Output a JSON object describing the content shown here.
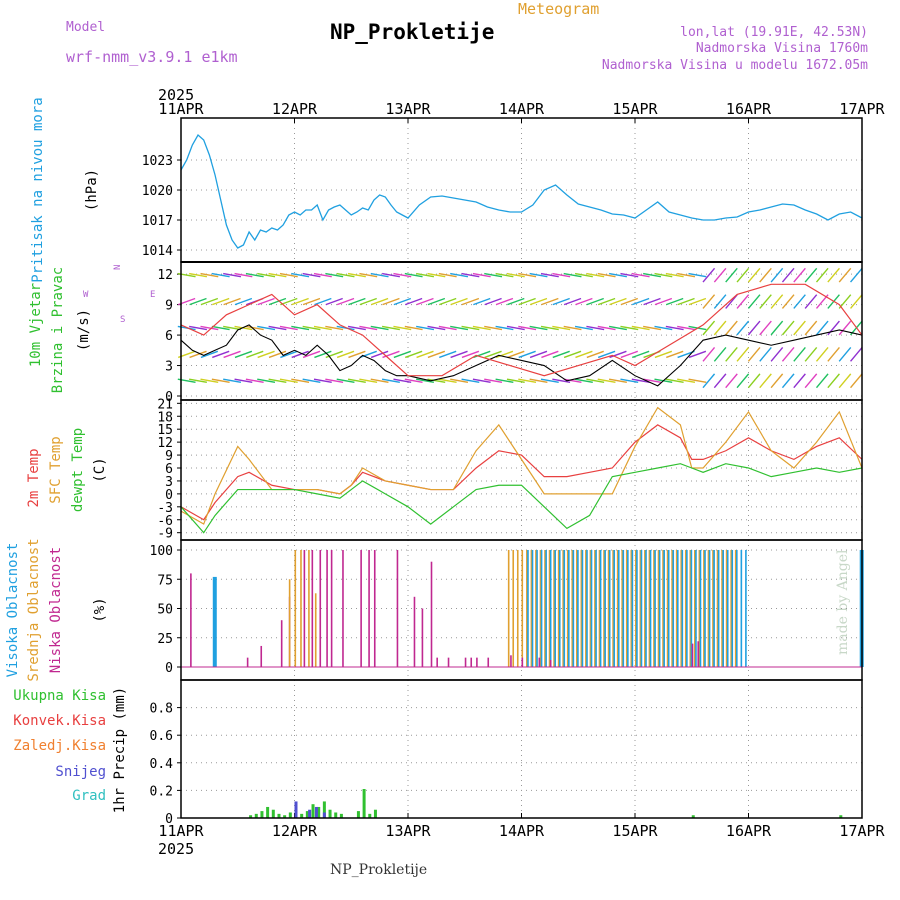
{
  "header": {
    "model_label": "Model",
    "model_name": "wrf-nmm_v3.9.1 e1km",
    "title": "NP_Prokletije",
    "subtitle": "Meteogram",
    "info_lines": [
      "lon,lat (19.91E, 42.53N)",
      "Nadmorska Visina 1760m",
      "Nadmorska Visina u modelu 1672.05m"
    ],
    "watermark": "made by Angel",
    "bottom_label": "NP_Prokletije"
  },
  "colors": {
    "pressure": "#20a0e0",
    "temp2m": "#e84040",
    "sfc_temp": "#e0a030",
    "dewpt": "#30c030",
    "cloud_high": "#20a0e0",
    "cloud_mid": "#e0a030",
    "cloud_low": "#c02890",
    "precip_total": "#30c030",
    "precip_conv": "#e84040",
    "precip_snow": "#5050d0",
    "precip_frozen": "#f08030",
    "precip_grad": "#30c0c0",
    "wind_speed": "#000000",
    "wind_gust": "#e84040"
  },
  "chart_data": [
    {
      "type": "line",
      "id": "pressure",
      "year_label": "2025",
      "date_labels": [
        "11APR",
        "12APR",
        "13APR",
        "14APR",
        "15APR",
        "16APR",
        "17APR"
      ],
      "ylabel_name": "Pritisak na nivou mora",
      "ylabel_unit": "(hPa)",
      "ylim": [
        1013.5,
        1026.5
      ],
      "yticks": [
        1014,
        1017,
        1020,
        1023
      ],
      "series": [
        {
          "x": [
            0,
            0.05,
            0.1,
            0.15,
            0.2,
            0.25,
            0.3,
            0.35,
            0.4,
            0.45,
            0.5,
            0.55,
            0.6,
            0.65,
            0.7,
            0.75,
            0.8,
            0.85,
            0.9,
            0.95,
            1.0,
            1.05,
            1.1,
            1.15,
            1.2,
            1.25,
            1.3,
            1.35,
            1.4,
            1.45,
            1.5,
            1.55,
            1.6,
            1.65,
            1.7,
            1.75,
            1.8,
            1.85,
            1.9,
            1.95,
            2.0,
            2.1,
            2.2,
            2.3,
            2.4,
            2.5,
            2.6,
            2.7,
            2.8,
            2.9,
            3.0,
            3.1,
            3.2,
            3.3,
            3.4,
            3.5,
            3.6,
            3.7,
            3.8,
            3.9,
            4.0,
            4.1,
            4.2,
            4.3,
            4.4,
            4.5,
            4.6,
            4.7,
            4.8,
            4.9,
            5.0,
            5.1,
            5.2,
            5.3,
            5.4,
            5.5,
            5.6,
            5.7,
            5.8,
            5.9,
            6.0
          ],
          "y": [
            1022.0,
            1023.0,
            1024.5,
            1025.5,
            1025.0,
            1023.5,
            1021.5,
            1019.0,
            1016.5,
            1015.0,
            1014.2,
            1014.5,
            1015.8,
            1015.0,
            1016.0,
            1015.8,
            1016.2,
            1016.0,
            1016.5,
            1017.5,
            1017.8,
            1017.5,
            1018.0,
            1018.0,
            1018.5,
            1017.0,
            1018.0,
            1018.3,
            1018.5,
            1018.0,
            1017.5,
            1017.8,
            1018.2,
            1018.0,
            1019.0,
            1019.5,
            1019.3,
            1018.5,
            1017.8,
            1017.5,
            1017.2,
            1018.5,
            1019.3,
            1019.4,
            1019.2,
            1019.0,
            1018.8,
            1018.3,
            1018.0,
            1017.8,
            1017.8,
            1018.5,
            1020.0,
            1020.5,
            1019.5,
            1018.6,
            1018.3,
            1018.0,
            1017.6,
            1017.5,
            1017.2,
            1018.0,
            1018.8,
            1017.8,
            1017.5,
            1017.2,
            1017.0,
            1017.0,
            1017.2,
            1017.3,
            1017.8,
            1018.0,
            1018.3,
            1018.6,
            1018.5,
            1018.0,
            1017.6,
            1017.0,
            1017.6,
            1017.8,
            1017.2
          ]
        }
      ]
    },
    {
      "type": "line",
      "id": "wind",
      "ylabel_name": "10m Vjetar",
      "ylabel_name2": "Brzina i Pravac",
      "ylabel_unit": "(m/s)",
      "compass": [
        "N",
        "E",
        "S",
        "W"
      ],
      "ylim": [
        0,
        13
      ],
      "yticks": [
        0,
        3,
        6,
        9,
        12
      ],
      "series": [
        {
          "name": "speed",
          "x": [
            0,
            0.1,
            0.2,
            0.3,
            0.4,
            0.5,
            0.6,
            0.7,
            0.8,
            0.9,
            1.0,
            1.1,
            1.2,
            1.3,
            1.4,
            1.5,
            1.6,
            1.7,
            1.8,
            1.9,
            2.0,
            2.2,
            2.4,
            2.6,
            2.8,
            3.0,
            3.2,
            3.4,
            3.6,
            3.8,
            4.0,
            4.2,
            4.4,
            4.6,
            4.8,
            5.0,
            5.2,
            5.4,
            5.6,
            5.8,
            6.0
          ],
          "y": [
            5.5,
            4.5,
            4.0,
            4.5,
            5.0,
            6.5,
            7.0,
            6.0,
            5.5,
            4.0,
            4.5,
            4.0,
            5.0,
            4.0,
            2.5,
            3.0,
            4.0,
            3.5,
            2.5,
            2.0,
            2.0,
            1.5,
            2.0,
            3.0,
            4.0,
            3.5,
            3.0,
            1.5,
            2.0,
            3.5,
            2.0,
            1.0,
            3.0,
            5.5,
            6.0,
            5.5,
            5.0,
            5.5,
            6.0,
            6.5,
            6.0
          ]
        },
        {
          "name": "gust",
          "x": [
            0,
            0.2,
            0.4,
            0.6,
            0.8,
            1.0,
            1.2,
            1.4,
            1.6,
            1.8,
            2.0,
            2.3,
            2.6,
            2.9,
            3.2,
            3.5,
            3.8,
            4.0,
            4.3,
            4.6,
            4.9,
            5.2,
            5.5,
            5.8,
            6.0
          ],
          "y": [
            7,
            6,
            8,
            9,
            10,
            8,
            9,
            7,
            6,
            4,
            2,
            2,
            4,
            3,
            2,
            3,
            4,
            3,
            5,
            7,
            10,
            11,
            11,
            9,
            6
          ]
        }
      ]
    },
    {
      "type": "line",
      "id": "temperature",
      "ylabel_names": [
        "2m Temp",
        "SFC Temp",
        "dewpt Temp"
      ],
      "ylabel_unit": "(C)",
      "ylim": [
        -10,
        22
      ],
      "yticks": [
        -9,
        -6,
        -3,
        0,
        3,
        6,
        9,
        12,
        15,
        18,
        21
      ],
      "series": [
        {
          "name": "2m Temp",
          "x": [
            0,
            0.2,
            0.3,
            0.5,
            0.6,
            0.8,
            1.0,
            1.2,
            1.4,
            1.5,
            1.6,
            1.8,
            2.0,
            2.2,
            2.4,
            2.6,
            2.8,
            3.0,
            3.2,
            3.4,
            3.6,
            3.8,
            4.0,
            4.2,
            4.4,
            4.5,
            4.6,
            4.8,
            5.0,
            5.2,
            5.4,
            5.6,
            5.8,
            6.0
          ],
          "y": [
            -3,
            -6,
            -2,
            4,
            5,
            2,
            1,
            1,
            0,
            2,
            5,
            3,
            2,
            1,
            1,
            6,
            10,
            9,
            4,
            4,
            5,
            6,
            12,
            16,
            13,
            8,
            8,
            10,
            13,
            10,
            8,
            11,
            13,
            8
          ]
        },
        {
          "name": "SFC Temp",
          "x": [
            0,
            0.2,
            0.3,
            0.5,
            0.6,
            0.8,
            1.0,
            1.2,
            1.4,
            1.5,
            1.6,
            1.8,
            2.0,
            2.2,
            2.4,
            2.6,
            2.8,
            3.0,
            3.2,
            3.4,
            3.6,
            3.8,
            4.0,
            4.2,
            4.4,
            4.5,
            4.6,
            4.8,
            5.0,
            5.2,
            5.4,
            5.6,
            5.8,
            6.0
          ],
          "y": [
            -4,
            -7,
            0,
            11,
            8,
            1,
            1,
            1,
            0,
            2,
            6,
            3,
            2,
            1,
            1,
            10,
            16,
            8,
            0,
            0,
            0,
            0,
            11,
            20,
            16,
            6,
            6,
            12,
            19,
            10,
            6,
            12,
            19,
            6
          ]
        },
        {
          "name": "dewpt Temp",
          "x": [
            0,
            0.2,
            0.3,
            0.5,
            0.6,
            0.8,
            1.0,
            1.2,
            1.4,
            1.5,
            1.6,
            1.8,
            2.0,
            2.2,
            2.4,
            2.6,
            2.8,
            3.0,
            3.2,
            3.4,
            3.6,
            3.8,
            4.0,
            4.2,
            4.4,
            4.5,
            4.6,
            4.8,
            5.0,
            5.2,
            5.4,
            5.6,
            5.8,
            6.0
          ],
          "y": [
            -3,
            -9,
            -5,
            1,
            1,
            1,
            1,
            0,
            -1,
            1,
            3,
            0,
            -3,
            -7,
            -3,
            1,
            2,
            2,
            -3,
            -8,
            -5,
            4,
            5,
            6,
            7,
            6,
            5,
            7,
            6,
            4,
            5,
            6,
            5,
            6
          ]
        }
      ]
    },
    {
      "type": "bar",
      "id": "clouds",
      "ylabel_names": [
        "Visoka Oblacnost",
        "Srednja Oblacnost",
        "Niska Oblacnost"
      ],
      "ylabel_unit": "(%)",
      "ylim": [
        0,
        100
      ],
      "yticks": [
        0,
        25,
        50,
        75,
        100
      ],
      "series": [
        {
          "name": "Niska Oblacnost",
          "x": [
            0.08,
            0.58,
            0.7,
            0.88,
            0.95,
            1.08,
            1.15,
            1.22,
            1.28,
            1.32,
            1.42,
            1.58,
            1.65,
            1.7,
            1.9,
            2.05,
            2.12,
            2.2,
            2.25,
            2.35,
            2.5,
            2.55,
            2.6,
            2.7,
            2.9,
            3.0,
            3.15,
            3.25,
            4.5,
            4.55
          ],
          "y": [
            80,
            8,
            18,
            40,
            60,
            100,
            100,
            100,
            100,
            100,
            100,
            100,
            100,
            100,
            100,
            60,
            50,
            90,
            8,
            8,
            8,
            8,
            8,
            8,
            10,
            8,
            8,
            6,
            20,
            22
          ]
        },
        {
          "name": "Srednja Oblacnost",
          "x": [
            0.95,
            1.0,
            1.05,
            1.12,
            1.18
          ],
          "y": [
            75,
            100,
            100,
            100,
            63
          ]
        },
        {
          "name": "Visoka Oblacnost",
          "x": [
            0.28,
            5.98
          ],
          "y": [
            77,
            100
          ]
        }
      ],
      "bands": [
        {
          "name": "Srednja Oblacnost",
          "from": 2.88,
          "to": 4.9,
          "value": 100
        },
        {
          "name": "Visoka Oblacnost",
          "from": 3.05,
          "to": 5.0,
          "value": 100
        }
      ]
    },
    {
      "type": "bar",
      "id": "precip",
      "ylabel_names": [
        "Ukupna Kisa",
        "Konvek.Kisa",
        "Zaledj.Kisa",
        "Snijeg",
        "Grad"
      ],
      "ylabel_unit": "1hr Precip (mm)",
      "ylim": [
        0,
        1.0
      ],
      "yticks": [
        0,
        0.2,
        0.4,
        0.6,
        0.8
      ],
      "series": [
        {
          "name": "Ukupna Kisa",
          "x": [
            0.6,
            0.65,
            0.7,
            0.75,
            0.8,
            0.85,
            0.9,
            0.95,
            1.0,
            1.05,
            1.1,
            1.15,
            1.2,
            1.25,
            1.3,
            1.35,
            1.4,
            1.55,
            1.6,
            1.65,
            1.7,
            4.5,
            5.8
          ],
          "y": [
            0.02,
            0.03,
            0.05,
            0.08,
            0.06,
            0.03,
            0.02,
            0.04,
            0.06,
            0.03,
            0.05,
            0.1,
            0.08,
            0.12,
            0.06,
            0.04,
            0.03,
            0.05,
            0.21,
            0.03,
            0.06,
            0.02,
            0.02
          ]
        },
        {
          "name": "Snijeg",
          "x": [
            1.0,
            1.12,
            1.18,
            1.25
          ],
          "y": [
            0.12,
            0.06,
            0.08,
            0.04
          ]
        }
      ]
    }
  ]
}
